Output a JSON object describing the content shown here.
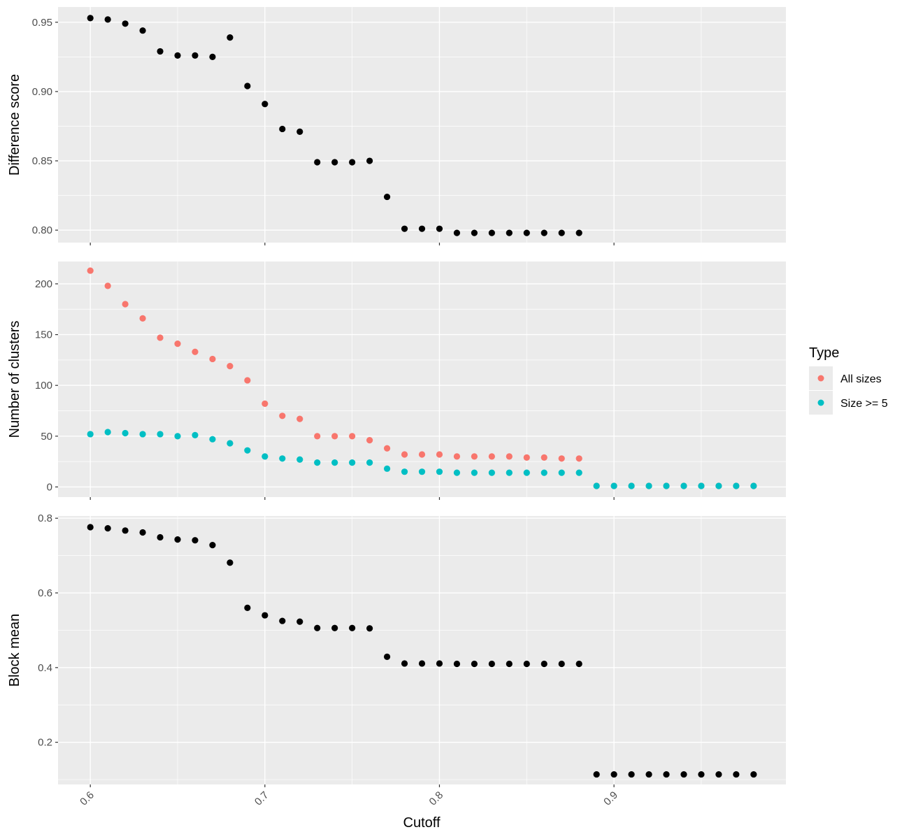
{
  "chart_data": [
    {
      "type": "scatter",
      "ylabel": "Difference score",
      "xlim": [
        0.5815,
        0.9985
      ],
      "ylim": [
        0.791,
        0.961
      ],
      "yticks": [
        "0.80",
        "0.85",
        "0.90",
        "0.95"
      ],
      "ytick_values": [
        0.8,
        0.85,
        0.9,
        0.95
      ],
      "series": [
        {
          "color": "#000000",
          "x": [
            0.6,
            0.61,
            0.62,
            0.63,
            0.64,
            0.65,
            0.66,
            0.67,
            0.68,
            0.69,
            0.7,
            0.71,
            0.72,
            0.73,
            0.74,
            0.75,
            0.76,
            0.77,
            0.78,
            0.79,
            0.8,
            0.81,
            0.82,
            0.83,
            0.84,
            0.85,
            0.86,
            0.87,
            0.88
          ],
          "y": [
            0.953,
            0.952,
            0.949,
            0.944,
            0.929,
            0.926,
            0.926,
            0.925,
            0.939,
            0.904,
            0.891,
            0.873,
            0.871,
            0.849,
            0.849,
            0.849,
            0.85,
            0.824,
            0.801,
            0.801,
            0.801,
            0.798,
            0.798,
            0.798,
            0.798,
            0.798,
            0.798,
            0.798,
            0.798
          ]
        }
      ]
    },
    {
      "type": "scatter",
      "ylabel": "Number of clusters",
      "xlim": [
        0.5815,
        0.9985
      ],
      "ylim": [
        -10,
        222
      ],
      "yticks": [
        "0",
        "50",
        "100",
        "150",
        "200"
      ],
      "ytick_values": [
        0,
        50,
        100,
        150,
        200
      ],
      "legend": {
        "title": "Type",
        "position": "right"
      },
      "series": [
        {
          "name": "All sizes",
          "color": "#F8766D",
          "x": [
            0.6,
            0.61,
            0.62,
            0.63,
            0.64,
            0.65,
            0.66,
            0.67,
            0.68,
            0.69,
            0.7,
            0.71,
            0.72,
            0.73,
            0.74,
            0.75,
            0.76,
            0.77,
            0.78,
            0.79,
            0.8,
            0.81,
            0.82,
            0.83,
            0.84,
            0.85,
            0.86,
            0.87,
            0.88,
            0.89,
            0.9,
            0.91,
            0.92,
            0.93,
            0.94,
            0.95,
            0.96,
            0.97,
            0.98
          ],
          "y": [
            213,
            198,
            180,
            166,
            147,
            141,
            133,
            126,
            119,
            105,
            82,
            70,
            67,
            50,
            50,
            50,
            46,
            38,
            32,
            32,
            32,
            30,
            30,
            30,
            30,
            29,
            29,
            28,
            28,
            1,
            1,
            1,
            1,
            1,
            1,
            1,
            1,
            1,
            1
          ]
        },
        {
          "name": "Size >= 5",
          "color": "#00BFC4",
          "x": [
            0.6,
            0.61,
            0.62,
            0.63,
            0.64,
            0.65,
            0.66,
            0.67,
            0.68,
            0.69,
            0.7,
            0.71,
            0.72,
            0.73,
            0.74,
            0.75,
            0.76,
            0.77,
            0.78,
            0.79,
            0.8,
            0.81,
            0.82,
            0.83,
            0.84,
            0.85,
            0.86,
            0.87,
            0.88,
            0.89,
            0.9,
            0.91,
            0.92,
            0.93,
            0.94,
            0.95,
            0.96,
            0.97,
            0.98
          ],
          "y": [
            52,
            54,
            53,
            52,
            52,
            50,
            51,
            47,
            43,
            36,
            30,
            28,
            27,
            24,
            24,
            24,
            24,
            18,
            15,
            15,
            15,
            14,
            14,
            14,
            14,
            14,
            14,
            14,
            14,
            1,
            1,
            1,
            1,
            1,
            1,
            1,
            1,
            1,
            1
          ]
        }
      ]
    },
    {
      "type": "scatter",
      "ylabel": "Block mean",
      "xlabel": "Cutoff",
      "xlim": [
        0.5815,
        0.9985
      ],
      "ylim": [
        0.087,
        0.806
      ],
      "yticks": [
        "0.2",
        "0.4",
        "0.6",
        "0.8"
      ],
      "ytick_values": [
        0.2,
        0.4,
        0.6,
        0.8
      ],
      "xticks": [
        "0.6",
        "0.7",
        "0.8",
        "0.9"
      ],
      "xtick_values": [
        0.6,
        0.7,
        0.8,
        0.9
      ],
      "series": [
        {
          "color": "#000000",
          "x": [
            0.6,
            0.61,
            0.62,
            0.63,
            0.64,
            0.65,
            0.66,
            0.67,
            0.68,
            0.69,
            0.7,
            0.71,
            0.72,
            0.73,
            0.74,
            0.75,
            0.76,
            0.77,
            0.78,
            0.79,
            0.8,
            0.81,
            0.82,
            0.83,
            0.84,
            0.85,
            0.86,
            0.87,
            0.88,
            0.89,
            0.9,
            0.91,
            0.92,
            0.93,
            0.94,
            0.95,
            0.96,
            0.97,
            0.98
          ],
          "y": [
            0.776,
            0.773,
            0.767,
            0.762,
            0.749,
            0.743,
            0.741,
            0.728,
            0.681,
            0.56,
            0.54,
            0.525,
            0.523,
            0.506,
            0.506,
            0.506,
            0.505,
            0.429,
            0.411,
            0.411,
            0.411,
            0.41,
            0.41,
            0.41,
            0.41,
            0.41,
            0.41,
            0.41,
            0.41,
            0.114,
            0.114,
            0.114,
            0.114,
            0.114,
            0.114,
            0.114,
            0.114,
            0.114,
            0.114
          ]
        }
      ]
    }
  ],
  "xticks": [
    "0.6",
    "0.7",
    "0.8",
    "0.9"
  ],
  "xlabel": "Cutoff",
  "legend": {
    "title": "Type",
    "items": [
      {
        "label": "All sizes",
        "color": "#F8766D"
      },
      {
        "label": "Size >= 5",
        "color": "#00BFC4"
      }
    ]
  },
  "colors": {
    "panel_bg": "#EBEBEB",
    "grid": "#FFFFFF",
    "black_points": "#000000"
  }
}
